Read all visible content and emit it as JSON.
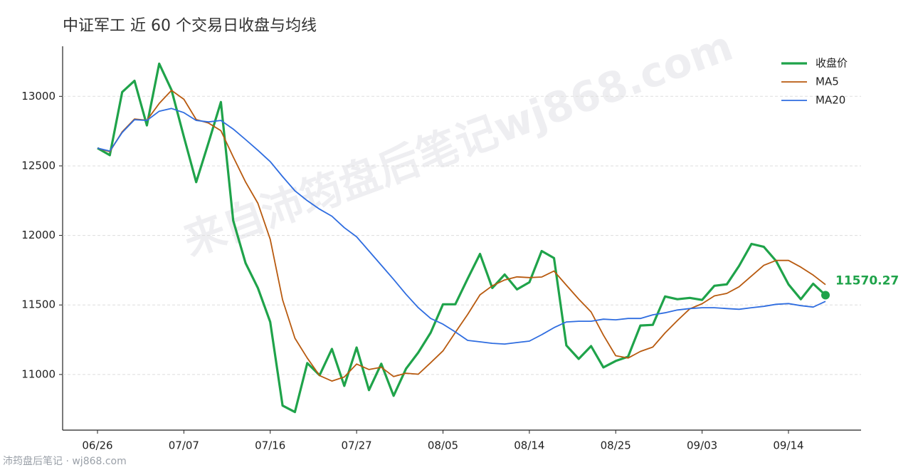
{
  "chart_data": {
    "type": "line",
    "title": "中证军工 近 60 个交易日收盘与均线",
    "watermark": "来自沛筠盘后笔记wj868.com",
    "footer": "沛筠盘后笔记 · wj868.com",
    "categories": [
      "06/26",
      null,
      null,
      null,
      null,
      null,
      null,
      "07/07",
      null,
      null,
      null,
      null,
      null,
      null,
      "07/16",
      null,
      null,
      null,
      null,
      null,
      null,
      "07/27",
      null,
      null,
      null,
      null,
      null,
      null,
      "08/05",
      null,
      null,
      null,
      null,
      null,
      null,
      "08/14",
      null,
      null,
      null,
      null,
      null,
      null,
      "08/25",
      null,
      null,
      null,
      null,
      null,
      null,
      "09/03",
      null,
      null,
      null,
      null,
      null,
      null,
      "09/14",
      null,
      null,
      null
    ],
    "series": [
      {
        "name": "收盘价",
        "color": "#1fa34a",
        "values": [
          12628,
          12577,
          13031,
          13112,
          12791,
          13235,
          13046,
          12709,
          12383,
          12668,
          12959,
          12107,
          11801,
          11622,
          11378,
          10776,
          10730,
          11082,
          10995,
          11184,
          10918,
          11194,
          10888,
          11077,
          10847,
          11041,
          11158,
          11301,
          11505,
          11505,
          11689,
          11867,
          11622,
          11719,
          11612,
          11663,
          11888,
          11837,
          11209,
          11112,
          11204,
          11051,
          11097,
          11128,
          11352,
          11357,
          11561,
          11541,
          11551,
          11536,
          11638,
          11648,
          11781,
          11939,
          11918,
          11816,
          11648,
          11541,
          11653,
          11570.27
        ]
      },
      {
        "name": "MA5",
        "color": "#b85a0f",
        "values": [
          12628,
          12602,
          12745,
          12837,
          12828,
          12949,
          13043,
          12979,
          12833,
          12808,
          12753,
          12565,
          12384,
          12231,
          11973,
          11537,
          11261,
          11118,
          10992,
          10953,
          10982,
          11075,
          11036,
          11052,
          10985,
          11009,
          11002,
          11085,
          11170,
          11302,
          11432,
          11573,
          11638,
          11680,
          11702,
          11697,
          11701,
          11744,
          11642,
          11542,
          11450,
          11283,
          11135,
          11118,
          11166,
          11197,
          11299,
          11388,
          11472,
          11509,
          11565,
          11583,
          11631,
          11708,
          11785,
          11820,
          11820,
          11772,
          11715,
          11646
        ]
      },
      {
        "name": "MA20",
        "color": "#2f6de0",
        "values": [
          12628,
          12607,
          12740,
          12832,
          12827,
          12893,
          12913,
          12883,
          12827,
          12816,
          12827,
          12765,
          12689,
          12612,
          12531,
          12423,
          12321,
          12250,
          12189,
          12138,
          12056,
          11990,
          11888,
          11786,
          11684,
          11577,
          11480,
          11403,
          11362,
          11306,
          11245,
          11235,
          11224,
          11219,
          11230,
          11240,
          11286,
          11337,
          11378,
          11383,
          11383,
          11398,
          11393,
          11403,
          11403,
          11429,
          11444,
          11464,
          11474,
          11480,
          11480,
          11474,
          11469,
          11480,
          11490,
          11505,
          11510,
          11495,
          11485,
          11526
        ]
      }
    ],
    "ylim": [
      10600,
      13360
    ],
    "yticks": [
      11000,
      11500,
      12000,
      12500,
      13000
    ],
    "grid": true,
    "legend": "upper right"
  }
}
